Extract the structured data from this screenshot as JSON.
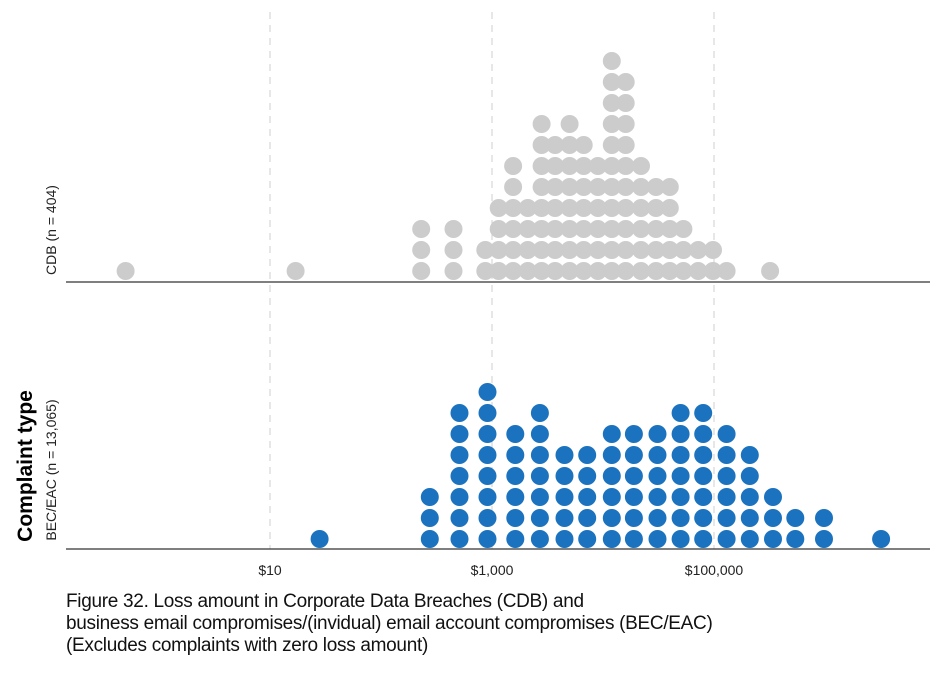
{
  "chart_data": {
    "type": "scatter",
    "subtype": "dot-histogram",
    "x_scale": "log",
    "xlim": [
      0.3,
      1000000
    ],
    "x_ticks": [
      {
        "value": 10,
        "label": "$10"
      },
      {
        "value": 1000,
        "label": "$1,000"
      },
      {
        "value": 100000,
        "label": "$100,000"
      }
    ],
    "grid": "vertical dashed at tick values",
    "ylabel": "Complaint type",
    "colors": {
      "CDB": "#cccccc",
      "BEC/EAC": "#1b72be"
    },
    "panels": [
      {
        "name": "CDB",
        "label": "CDB (n = 404)",
        "color": "#cccccc",
        "dot_counts": [
          {
            "x": 0.5,
            "count": 1
          },
          {
            "x": 17,
            "count": 1
          },
          {
            "x": 230,
            "count": 3
          },
          {
            "x": 450,
            "count": 3
          },
          {
            "x": 870,
            "count": 2
          },
          {
            "x": 1150,
            "count": 4
          },
          {
            "x": 1550,
            "count": 6
          },
          {
            "x": 2100,
            "count": 4
          },
          {
            "x": 2800,
            "count": 8
          },
          {
            "x": 3700,
            "count": 7
          },
          {
            "x": 5000,
            "count": 8
          },
          {
            "x": 6700,
            "count": 7
          },
          {
            "x": 9000,
            "count": 6
          },
          {
            "x": 12000,
            "count": 11
          },
          {
            "x": 16000,
            "count": 10
          },
          {
            "x": 22000,
            "count": 6
          },
          {
            "x": 30000,
            "count": 5
          },
          {
            "x": 40000,
            "count": 5
          },
          {
            "x": 53000,
            "count": 3
          },
          {
            "x": 72000,
            "count": 2
          },
          {
            "x": 98000,
            "count": 2
          },
          {
            "x": 130000,
            "count": 1
          },
          {
            "x": 320000,
            "count": 1
          }
        ]
      },
      {
        "name": "BEC/EAC",
        "label": "BEC/EAC (n = 13,065)",
        "color": "#1b72be",
        "dot_counts": [
          {
            "x": 28,
            "count": 1
          },
          {
            "x": 275,
            "count": 3
          },
          {
            "x": 510,
            "count": 7
          },
          {
            "x": 910,
            "count": 8
          },
          {
            "x": 1620,
            "count": 6
          },
          {
            "x": 2700,
            "count": 7
          },
          {
            "x": 4500,
            "count": 5
          },
          {
            "x": 7200,
            "count": 5
          },
          {
            "x": 12000,
            "count": 6
          },
          {
            "x": 19000,
            "count": 6
          },
          {
            "x": 31000,
            "count": 6
          },
          {
            "x": 50000,
            "count": 7
          },
          {
            "x": 80000,
            "count": 7
          },
          {
            "x": 130000,
            "count": 6
          },
          {
            "x": 210000,
            "count": 5
          },
          {
            "x": 340000,
            "count": 3
          },
          {
            "x": 540000,
            "count": 2
          },
          {
            "x": 980000,
            "count": 2
          },
          {
            "x": 3200000,
            "count": 1
          }
        ]
      }
    ]
  },
  "caption": {
    "line1": "Figure 32. Loss amount in Corporate Data Breaches (CDB) and",
    "line2": "business email compromises/(invidual) email account compromises (BEC/EAC)",
    "line3": "(Excludes complaints with zero loss amount)"
  }
}
